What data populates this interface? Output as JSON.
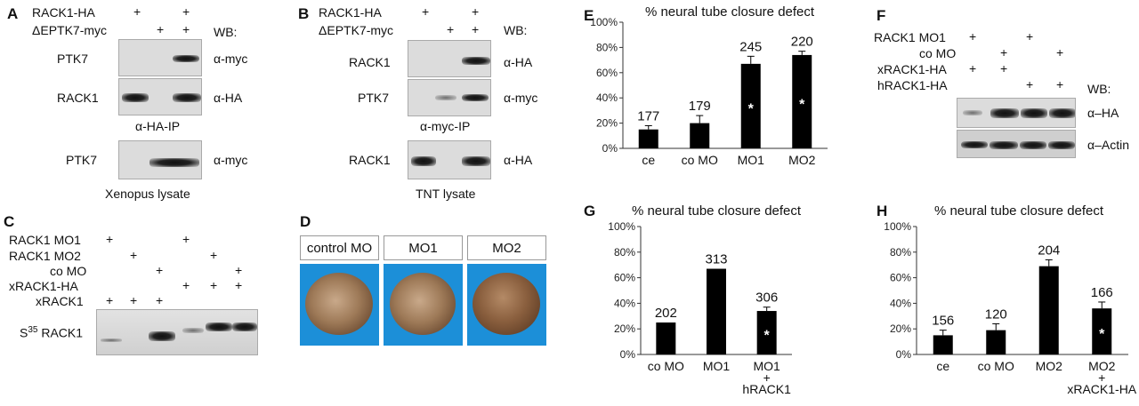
{
  "panelA": {
    "label": "A",
    "rows": [
      "RACK1-HA",
      "ΔEPTK7-myc"
    ],
    "signs": [
      [
        "+",
        "",
        "+"
      ],
      [
        "",
        "+",
        "+"
      ]
    ],
    "wb": "WB:",
    "blot1_left": "PTK7",
    "blot1_right": "α-myc",
    "blot2_left": "RACK1",
    "blot2_right": "α-HA",
    "ip": "α-HA-IP",
    "blot3_left": "PTK7",
    "blot3_right": "α-myc",
    "caption": "Xenopus lysate"
  },
  "panelB": {
    "label": "B",
    "rows": [
      "RACK1-HA",
      "ΔEPTK7-myc"
    ],
    "signs": [
      [
        "+",
        "",
        "+"
      ],
      [
        "",
        "+",
        "+"
      ]
    ],
    "wb": "WB:",
    "blot1_left": "RACK1",
    "blot1_right": "α-HA",
    "blot2_left": "PTK7",
    "blot2_right": "α-myc",
    "ip": "α-myc-IP",
    "blot3_left": "RACK1",
    "blot3_right": "α-HA",
    "caption": "TNT lysate"
  },
  "panelC": {
    "label": "C",
    "rows": [
      "RACK1 MO1",
      "RACK1 MO2",
      "co MO",
      "xRACK1-HA",
      "xRACK1"
    ],
    "signs": [
      [
        "+",
        "",
        "",
        "+",
        "",
        ""
      ],
      [
        "",
        "+",
        "",
        "",
        "+",
        ""
      ],
      [
        "",
        "",
        "+",
        "",
        "",
        "+"
      ],
      [
        "",
        "",
        "",
        "+",
        "+",
        "+"
      ],
      [
        "+",
        "+",
        "+",
        "",
        "",
        ""
      ]
    ],
    "s35_sup": "35",
    "s35_pre": "S",
    "s35_post": " RACK1"
  },
  "panelD": {
    "label": "D",
    "boxes": [
      "control MO",
      "MO1",
      "MO2"
    ]
  },
  "panelF": {
    "label": "F",
    "rows": [
      "RACK1 MO1",
      "co MO",
      "xRACK1-HA",
      "hRACK1-HA"
    ],
    "signs": [
      [
        "+",
        "",
        "+",
        ""
      ],
      [
        "",
        "+",
        "",
        "+"
      ],
      [
        "+",
        "+",
        "",
        ""
      ],
      [
        "",
        "",
        "+",
        "+"
      ]
    ],
    "wb": "WB:",
    "blot1_right": "α–HA",
    "blot2_right": "α–Actin"
  },
  "panelE": {
    "label": "E"
  },
  "panelG": {
    "label": "G"
  },
  "panelH": {
    "label": "H"
  },
  "chart_data": [
    {
      "type": "bar",
      "panel": "E",
      "title": "% neural tube closure defect",
      "categories": [
        "ce",
        "co MO",
        "MO1",
        "MO2"
      ],
      "values": [
        15,
        20,
        67,
        74
      ],
      "errors": [
        3,
        6,
        6,
        3
      ],
      "counts": [
        "177",
        "179",
        "245",
        "220"
      ],
      "significant": [
        false,
        false,
        true,
        true
      ],
      "star": "*",
      "yticks": [
        "0%",
        "20%",
        "40%",
        "60%",
        "80%",
        "100%"
      ],
      "ylim": [
        0,
        100
      ]
    },
    {
      "type": "bar",
      "panel": "G",
      "title": "% neural tube closure defect",
      "categories": [
        "co MO",
        "MO1",
        "MO1\n+\nhRACK1"
      ],
      "values": [
        25,
        67,
        34
      ],
      "errors": [
        0,
        0,
        3
      ],
      "counts": [
        "202",
        "313",
        "306"
      ],
      "significant": [
        false,
        false,
        true
      ],
      "star": "*",
      "yticks": [
        "0%",
        "20%",
        "40%",
        "60%",
        "80%",
        "100%"
      ],
      "ylim": [
        0,
        100
      ]
    },
    {
      "type": "bar",
      "panel": "H",
      "title": "% neural tube closure defect",
      "categories": [
        "ce",
        "co MO",
        "MO2",
        "MO2\n+\nxRACK1-HA"
      ],
      "values": [
        15,
        19,
        69,
        36
      ],
      "errors": [
        4,
        5,
        5,
        5
      ],
      "counts": [
        "156",
        "120",
        "204",
        "166"
      ],
      "significant": [
        false,
        false,
        false,
        true
      ],
      "star": "*",
      "yticks": [
        "0%",
        "20%",
        "40%",
        "60%",
        "80%",
        "100%"
      ],
      "ylim": [
        0,
        100
      ]
    }
  ]
}
